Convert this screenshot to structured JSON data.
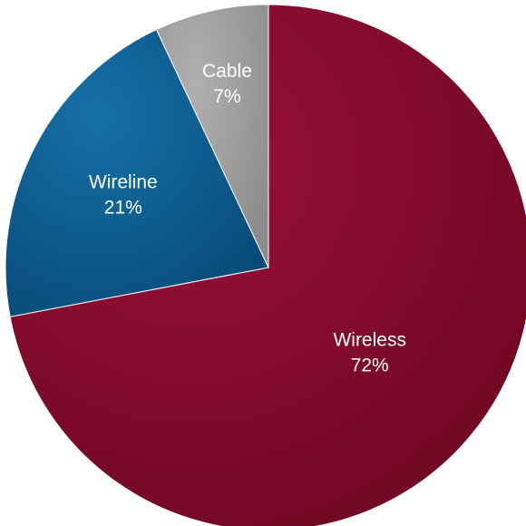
{
  "chart_data": {
    "type": "pie",
    "title": "",
    "slices": [
      {
        "label": "Wireless",
        "value": 72,
        "value_label": "72%",
        "color": "#8b0a30"
      },
      {
        "label": "Wireline",
        "value": 21,
        "value_label": "21%",
        "color": "#0a5f95"
      },
      {
        "label": "Cable",
        "value": 7,
        "value_label": "7%",
        "color": "#9e9e9e"
      }
    ],
    "start_angle": "12 o'clock",
    "direction": "clockwise",
    "legend": "none",
    "labels": "inside slices"
  }
}
